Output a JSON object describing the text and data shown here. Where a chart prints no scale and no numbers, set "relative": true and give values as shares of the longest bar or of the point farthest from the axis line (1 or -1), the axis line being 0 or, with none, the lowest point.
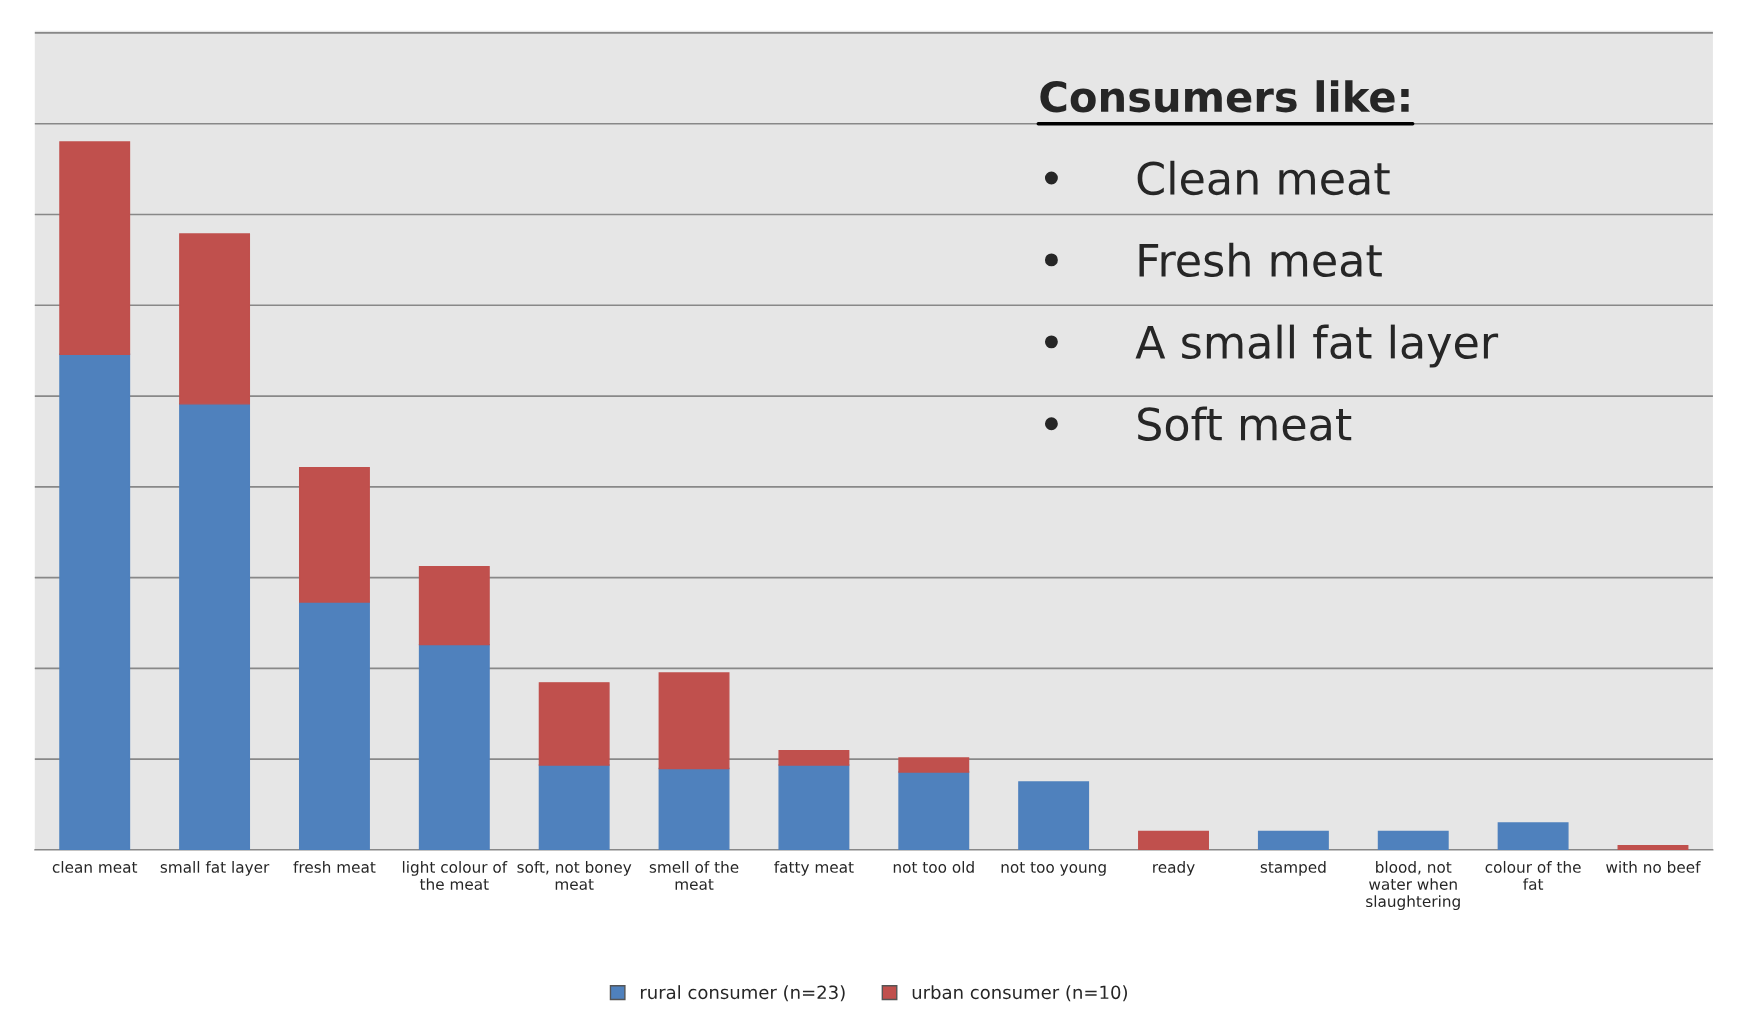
{
  "chart_data": {
    "type": "bar",
    "stacked": true,
    "relative": true,
    "grid": "y",
    "legend": "bottom",
    "categories": [
      "clean meat",
      "small fat layer",
      "fresh meat",
      "light colour of the meat",
      "soft, not boney meat",
      "smell of the meat",
      "fatty meat",
      "not too old",
      "not too young",
      "ready",
      "stamped",
      "blood, not water when slaughtering",
      "colour of the fat",
      "with no beef"
    ],
    "series": [
      {
        "name": "rural consumer (n=23)",
        "color": "#4f81bd",
        "values": [
          0.7,
          0.63,
          0.35,
          0.29,
          0.12,
          0.115,
          0.12,
          0.11,
          0.096,
          0,
          0.026,
          0.026,
          0.038,
          0
        ]
      },
      {
        "name": "urban consumer (n=10)",
        "color": "#c0504d",
        "values": [
          0.3,
          0.24,
          0.19,
          0.11,
          0.116,
          0.135,
          0.02,
          0.02,
          0,
          0.026,
          0,
          0,
          0,
          0.006
        ]
      }
    ],
    "annotations": [
      "Consumers like:",
      "•     Clean meat",
      "•     Fresh meat",
      "•     A small fat layer",
      "•     Soft meat"
    ]
  }
}
